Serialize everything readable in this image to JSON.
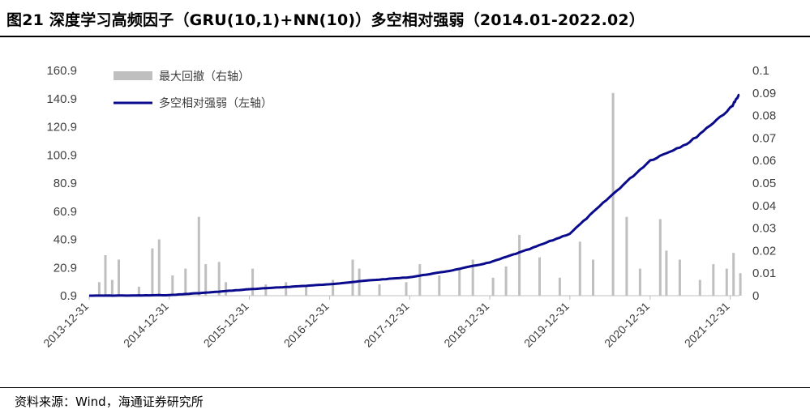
{
  "header": {
    "title": "图21 深度学习高频因子（GRU(10,1)+NN(10)）多空相对强弱（2014.01-2022.02）"
  },
  "footer": {
    "source": "资料来源：Wind，海通证券研究所"
  },
  "colors": {
    "line": "#0a0a8c",
    "bar": "#bfbfbf",
    "axis": "#bfbfbf",
    "text": "#404040"
  },
  "chart_data": {
    "type": "bar+line",
    "x_tick_labels": [
      "2013-12-31",
      "2014-12-31",
      "2015-12-31",
      "2016-12-31",
      "2017-12-31",
      "2018-12-31",
      "2019-12-31",
      "2020-12-31",
      "2021-12-31"
    ],
    "x_range": [
      "2013-12-31",
      "2022-02"
    ],
    "y_left": {
      "ticks": [
        "0.9",
        "20.9",
        "40.9",
        "60.9",
        "80.9",
        "100.9",
        "120.9",
        "140.9",
        "160.9"
      ],
      "range": [
        0.9,
        160.9
      ]
    },
    "y_right": {
      "ticks": [
        "0",
        "0.01",
        "0.02",
        "0.03",
        "0.04",
        "0.05",
        "0.06",
        "0.07",
        "0.08",
        "0.09",
        "0.1"
      ],
      "range": [
        0,
        0.1
      ]
    },
    "legend": {
      "position": "top-left",
      "entries": [
        "最大回撤（右轴）",
        "多空相对强弱（左轴）"
      ]
    },
    "series": [
      {
        "name": "多空相对强弱（左轴）",
        "kind": "line",
        "axis": "left",
        "points": [
          [
            "2013-12-31",
            0.9
          ],
          [
            "2014-06-30",
            1.0
          ],
          [
            "2014-12-31",
            1.3
          ],
          [
            "2015-06-30",
            3.2
          ],
          [
            "2015-12-31",
            5.5
          ],
          [
            "2016-06-30",
            7.2
          ],
          [
            "2016-12-31",
            9.0
          ],
          [
            "2017-06-30",
            11.8
          ],
          [
            "2017-12-31",
            14.0
          ],
          [
            "2018-06-30",
            18.5
          ],
          [
            "2018-12-31",
            24.5
          ],
          [
            "2019-06-30",
            34.0
          ],
          [
            "2019-12-31",
            45.0
          ],
          [
            "2020-06-30",
            71.0
          ],
          [
            "2020-12-31",
            97.0
          ],
          [
            "2021-06-30",
            110.0
          ],
          [
            "2021-12-31",
            134.0
          ],
          [
            "2022-02-11",
            143.5
          ]
        ]
      },
      {
        "name": "最大回撤（右轴）",
        "kind": "bar",
        "axis": "right",
        "points": [
          [
            "2014-02",
            0.006
          ],
          [
            "2014-03",
            0.018
          ],
          [
            "2014-04",
            0.007
          ],
          [
            "2014-05",
            0.016
          ],
          [
            "2014-08",
            0.004
          ],
          [
            "2014-10",
            0.021
          ],
          [
            "2014-11",
            0.025
          ],
          [
            "2015-01",
            0.009
          ],
          [
            "2015-03",
            0.012
          ],
          [
            "2015-05",
            0.035
          ],
          [
            "2015-06",
            0.014
          ],
          [
            "2015-08",
            0.015
          ],
          [
            "2015-09",
            0.006
          ],
          [
            "2016-01",
            0.012
          ],
          [
            "2016-03",
            0.005
          ],
          [
            "2016-06",
            0.006
          ],
          [
            "2016-09",
            0.004
          ],
          [
            "2017-01",
            0.007
          ],
          [
            "2017-04",
            0.016
          ],
          [
            "2017-05",
            0.012
          ],
          [
            "2017-08",
            0.005
          ],
          [
            "2017-12",
            0.006
          ],
          [
            "2018-02",
            0.014
          ],
          [
            "2018-05",
            0.009
          ],
          [
            "2018-08",
            0.012
          ],
          [
            "2018-10",
            0.016
          ],
          [
            "2019-01",
            0.008
          ],
          [
            "2019-03",
            0.013
          ],
          [
            "2019-05",
            0.027
          ],
          [
            "2019-08",
            0.017
          ],
          [
            "2019-11",
            0.008
          ],
          [
            "2020-02",
            0.024
          ],
          [
            "2020-04",
            0.016
          ],
          [
            "2020-07",
            0.09
          ],
          [
            "2020-09",
            0.035
          ],
          [
            "2020-11",
            0.012
          ],
          [
            "2021-02",
            0.034
          ],
          [
            "2021-03",
            0.02
          ],
          [
            "2021-05",
            0.016
          ],
          [
            "2021-08",
            0.007
          ],
          [
            "2021-10",
            0.014
          ],
          [
            "2021-12",
            0.012
          ],
          [
            "2022-01",
            0.019
          ],
          [
            "2022-02",
            0.01
          ]
        ]
      }
    ]
  }
}
